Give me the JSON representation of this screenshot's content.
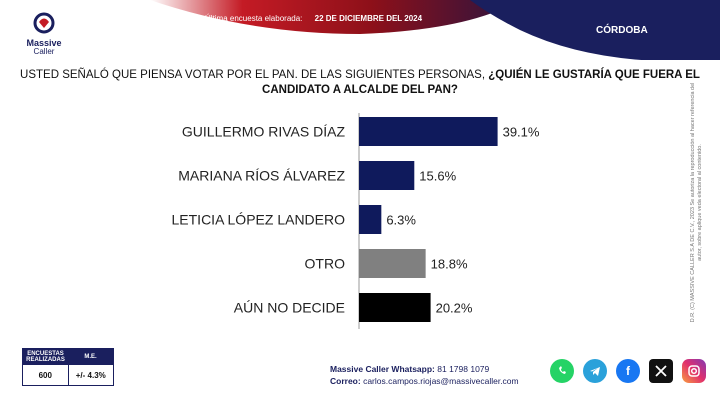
{
  "header": {
    "brand": "Massive",
    "brand_sub": "Caller",
    "survey_label": "Última encuesta elaborada:",
    "survey_date": "22 DE DICIEMBRE DEL 2024",
    "region": "CÓRDOBA"
  },
  "question": {
    "part1": "USTED SEÑALÓ QUE PIENSA VOTAR POR EL PAN.  DE LAS SIGUIENTES PERSONAS, ",
    "part2": "¿QUIÉN LE GUSTARÍA QUE FUERA EL CANDIDATO A ALCALDE DEL PAN?"
  },
  "chart_data": {
    "type": "bar",
    "orientation": "horizontal",
    "title": "",
    "xlabel": "",
    "ylabel": "",
    "categories": [
      "GUILLERMO RIVAS DÍAZ",
      "MARIANA RÍOS ÁLVAREZ",
      "LETICIA LÓPEZ LANDERO",
      "OTRO",
      "AÚN NO DECIDE"
    ],
    "values": [
      39.1,
      15.6,
      6.3,
      18.8,
      20.2
    ],
    "value_labels": [
      "39.1%",
      "15.6%",
      "6.3%",
      "18.8%",
      "20.2%"
    ],
    "colors": [
      "#0f1a5c",
      "#0f1a5c",
      "#0f1a5c",
      "#808080",
      "#000000"
    ],
    "xlim": [
      0,
      50
    ],
    "grid": false
  },
  "side_note": "D.R. (C) MASSIVE CALLER S.A DE C.V., 2023 Se autoriza la reproducción al hacer referencia del autor, sobre aplique veda electoral al contenido.",
  "stats": {
    "col1_header": "ENCUESTAS REALIZADAS",
    "col2_header": "M.E.",
    "col1_value": "600",
    "col2_value": "+/- 4.3%"
  },
  "contact": {
    "whatsapp_label": "Massive Caller Whatsapp:",
    "whatsapp_number": "81 1798 1079",
    "email_label": "Correo:",
    "email": "carlos.campos.riojas@massivecaller.com"
  },
  "socials": [
    {
      "icon": "whatsapp-icon",
      "color": "#25d366"
    },
    {
      "icon": "telegram-icon",
      "color": "#2aa1da"
    },
    {
      "icon": "facebook-icon",
      "color": "#1877f2"
    },
    {
      "icon": "x-icon",
      "color": "#111111"
    },
    {
      "icon": "instagram-icon",
      "color": "#e1306c"
    }
  ]
}
